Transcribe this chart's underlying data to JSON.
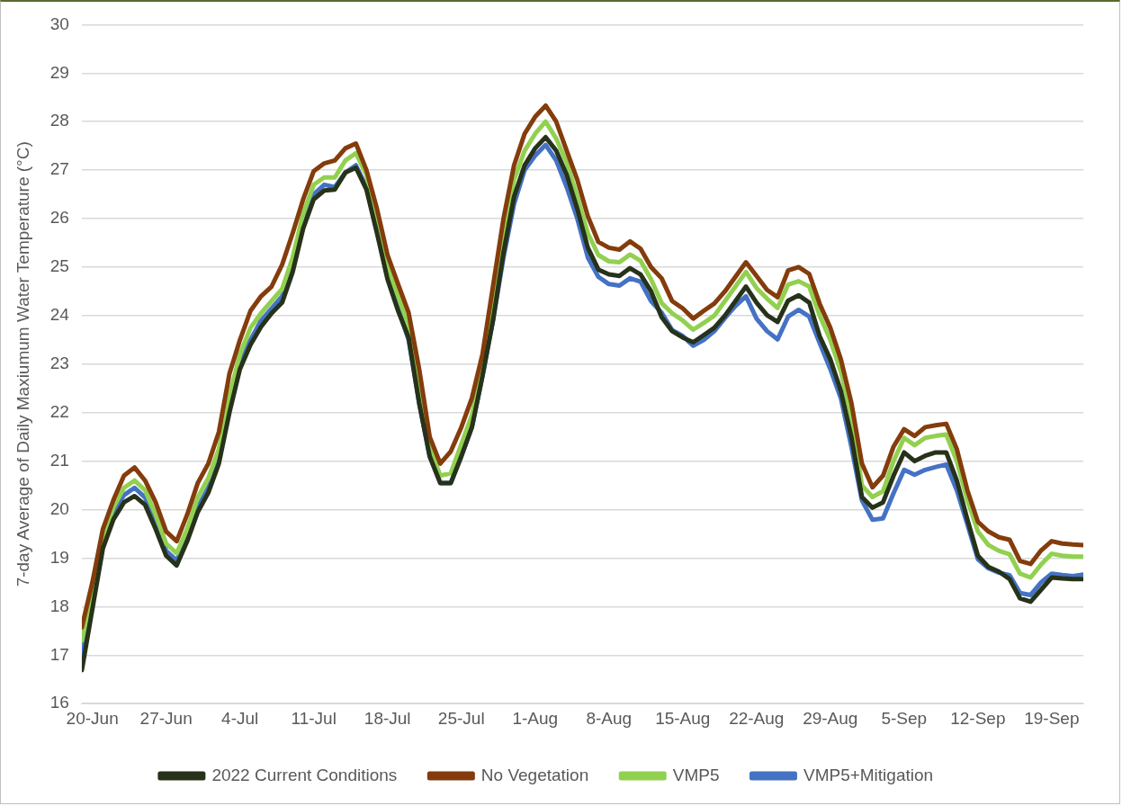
{
  "chart_data": {
    "type": "line",
    "ylabel": "7-day Average of Daily Maxiumum Water Temperature (°C)",
    "x": [
      "--06-19",
      "--06-20",
      "--06-21",
      "--06-22",
      "--06-23",
      "--06-24",
      "--06-25",
      "--06-26",
      "--06-27",
      "--06-28",
      "--06-29",
      "--06-30",
      "--07-01",
      "--07-02",
      "--07-03",
      "--07-04",
      "--07-05",
      "--07-06",
      "--07-07",
      "--07-08",
      "--07-09",
      "--07-10",
      "--07-11",
      "--07-12",
      "--07-13",
      "--07-14",
      "--07-15",
      "--07-16",
      "--07-17",
      "--07-18",
      "--07-19",
      "--07-20",
      "--07-21",
      "--07-22",
      "--07-23",
      "--07-24",
      "--07-25",
      "--07-26",
      "--07-27",
      "--07-28",
      "--07-29",
      "--07-30",
      "--07-31",
      "--08-01",
      "--08-02",
      "--08-03",
      "--08-04",
      "--08-05",
      "--08-06",
      "--08-07",
      "--08-08",
      "--08-09",
      "--08-10",
      "--08-11",
      "--08-12",
      "--08-13",
      "--08-14",
      "--08-15",
      "--08-16",
      "--08-17",
      "--08-18",
      "--08-19",
      "--08-20",
      "--08-21",
      "--08-22",
      "--08-23",
      "--08-24",
      "--08-25",
      "--08-26",
      "--08-27",
      "--08-28",
      "--08-29",
      "--08-30",
      "--08-31",
      "--09-01",
      "--09-02",
      "--09-03",
      "--09-04",
      "--09-05",
      "--09-06",
      "--09-07",
      "--09-08",
      "--09-09",
      "--09-10",
      "--09-11",
      "--09-12",
      "--09-13",
      "--09-14",
      "--09-15",
      "--09-16",
      "--09-17",
      "--09-18",
      "--09-19",
      "--09-20",
      "--09-21",
      "--09-22"
    ],
    "series": [
      {
        "name": "2022 Current Conditions",
        "color": "#263219",
        "values": [
          16.69,
          17.95,
          19.2,
          19.8,
          20.15,
          20.28,
          20.1,
          19.6,
          19.05,
          18.85,
          19.35,
          19.95,
          20.35,
          20.95,
          22.0,
          22.9,
          23.4,
          23.77,
          24.05,
          24.27,
          24.9,
          25.8,
          26.4,
          26.58,
          26.6,
          26.95,
          27.05,
          26.6,
          25.7,
          24.75,
          24.1,
          23.55,
          22.2,
          21.1,
          20.55,
          20.55,
          21.1,
          21.7,
          22.75,
          23.9,
          25.3,
          26.45,
          27.1,
          27.45,
          27.68,
          27.4,
          26.9,
          26.2,
          25.4,
          24.95,
          24.85,
          24.82,
          24.98,
          24.85,
          24.5,
          23.97,
          23.68,
          23.55,
          23.45,
          23.6,
          23.75,
          24.0,
          24.3,
          24.6,
          24.27,
          24.01,
          23.87,
          24.31,
          24.42,
          24.27,
          23.57,
          23.1,
          22.45,
          21.5,
          20.26,
          20.04,
          20.15,
          20.7,
          21.18,
          21.0,
          21.11,
          21.18,
          21.18,
          20.6,
          19.8,
          19.05,
          18.82,
          18.72,
          18.57,
          18.17,
          18.1,
          18.35,
          18.6,
          18.58,
          18.57,
          18.57
        ]
      },
      {
        "name": "No Vegetation",
        "color": "#843c0c",
        "values": [
          17.57,
          18.5,
          19.6,
          20.2,
          20.7,
          20.87,
          20.6,
          20.15,
          19.55,
          19.35,
          19.9,
          20.55,
          20.95,
          21.6,
          22.8,
          23.5,
          24.1,
          24.4,
          24.6,
          25.05,
          25.7,
          26.4,
          26.98,
          27.14,
          27.2,
          27.45,
          27.55,
          27.0,
          26.2,
          25.25,
          24.65,
          24.06,
          22.9,
          21.5,
          20.95,
          21.2,
          21.7,
          22.3,
          23.2,
          24.6,
          26.0,
          27.1,
          27.75,
          28.1,
          28.33,
          28.0,
          27.4,
          26.8,
          26.05,
          25.52,
          25.4,
          25.36,
          25.53,
          25.38,
          25.0,
          24.77,
          24.3,
          24.15,
          23.94,
          24.1,
          24.25,
          24.5,
          24.8,
          25.1,
          24.82,
          24.53,
          24.38,
          24.93,
          25.0,
          24.86,
          24.24,
          23.75,
          23.1,
          22.2,
          20.95,
          20.46,
          20.7,
          21.3,
          21.66,
          21.52,
          21.7,
          21.74,
          21.77,
          21.25,
          20.4,
          19.75,
          19.55,
          19.43,
          19.38,
          18.94,
          18.88,
          19.16,
          19.35,
          19.3,
          19.28,
          19.27
        ]
      },
      {
        "name": "VMP5",
        "color": "#92d050",
        "values": [
          17.3,
          18.3,
          19.45,
          20.05,
          20.45,
          20.6,
          20.4,
          19.9,
          19.3,
          19.1,
          19.6,
          20.25,
          20.65,
          21.25,
          22.35,
          23.2,
          23.75,
          24.05,
          24.3,
          24.55,
          25.2,
          26.1,
          26.7,
          26.85,
          26.85,
          27.2,
          27.35,
          26.9,
          26.0,
          25.0,
          24.4,
          23.8,
          22.5,
          21.3,
          20.7,
          20.75,
          21.35,
          21.95,
          22.95,
          24.2,
          25.6,
          26.8,
          27.4,
          27.75,
          28.0,
          27.65,
          27.15,
          26.45,
          25.7,
          25.25,
          25.12,
          25.1,
          25.26,
          25.13,
          24.75,
          24.26,
          24.05,
          23.9,
          23.71,
          23.85,
          24.0,
          24.3,
          24.6,
          24.9,
          24.57,
          24.35,
          24.16,
          24.64,
          24.71,
          24.6,
          24.0,
          23.5,
          22.85,
          21.9,
          20.5,
          20.26,
          20.38,
          21.0,
          21.48,
          21.33,
          21.48,
          21.52,
          21.55,
          21.0,
          20.2,
          19.55,
          19.27,
          19.15,
          19.08,
          18.68,
          18.6,
          18.87,
          19.09,
          19.05,
          19.03,
          19.03
        ]
      },
      {
        "name": "VMP5+Mitigation",
        "color": "#4472c4",
        "values": [
          17.0,
          18.1,
          19.35,
          19.95,
          20.3,
          20.45,
          20.25,
          19.75,
          19.15,
          18.95,
          19.45,
          20.05,
          20.45,
          21.05,
          22.1,
          23.0,
          23.5,
          23.9,
          24.15,
          24.4,
          25.0,
          25.9,
          26.5,
          26.7,
          26.65,
          26.95,
          27.1,
          26.65,
          25.75,
          24.8,
          24.15,
          23.5,
          22.2,
          21.1,
          20.55,
          20.55,
          21.1,
          21.7,
          22.75,
          23.9,
          25.2,
          26.3,
          27.0,
          27.3,
          27.52,
          27.2,
          26.65,
          26.0,
          25.2,
          24.8,
          24.65,
          24.62,
          24.77,
          24.7,
          24.3,
          24.06,
          23.7,
          23.58,
          23.38,
          23.5,
          23.68,
          23.95,
          24.2,
          24.4,
          23.94,
          23.68,
          23.51,
          23.98,
          24.12,
          23.98,
          23.43,
          22.9,
          22.3,
          21.3,
          20.19,
          19.79,
          19.82,
          20.34,
          20.82,
          20.72,
          20.82,
          20.88,
          20.93,
          20.4,
          19.7,
          18.98,
          18.79,
          18.7,
          18.65,
          18.28,
          18.24,
          18.5,
          18.68,
          18.65,
          18.63,
          18.66
        ]
      }
    ],
    "xlim": [
      "--06-19",
      "--09-22"
    ],
    "xticks": [
      {
        "value": "--06-20",
        "label": "20-Jun"
      },
      {
        "value": "--06-27",
        "label": "27-Jun"
      },
      {
        "value": "--07-04",
        "label": "4-Jul"
      },
      {
        "value": "--07-11",
        "label": "11-Jul"
      },
      {
        "value": "--07-18",
        "label": "18-Jul"
      },
      {
        "value": "--07-25",
        "label": "25-Jul"
      },
      {
        "value": "--08-01",
        "label": "1-Aug"
      },
      {
        "value": "--08-08",
        "label": "8-Aug"
      },
      {
        "value": "--08-15",
        "label": "15-Aug"
      },
      {
        "value": "--08-22",
        "label": "22-Aug"
      },
      {
        "value": "--08-29",
        "label": "29-Aug"
      },
      {
        "value": "--09-05",
        "label": "5-Sep"
      },
      {
        "value": "--09-12",
        "label": "12-Sep"
      },
      {
        "value": "--09-19",
        "label": "19-Sep"
      }
    ],
    "ylim": [
      16,
      30
    ],
    "yticks": [
      16,
      17,
      18,
      19,
      20,
      21,
      22,
      23,
      24,
      25,
      26,
      27,
      28,
      29,
      30
    ],
    "grid": "y",
    "legend": "bottom",
    "marker": "none",
    "line_style": "solid"
  }
}
